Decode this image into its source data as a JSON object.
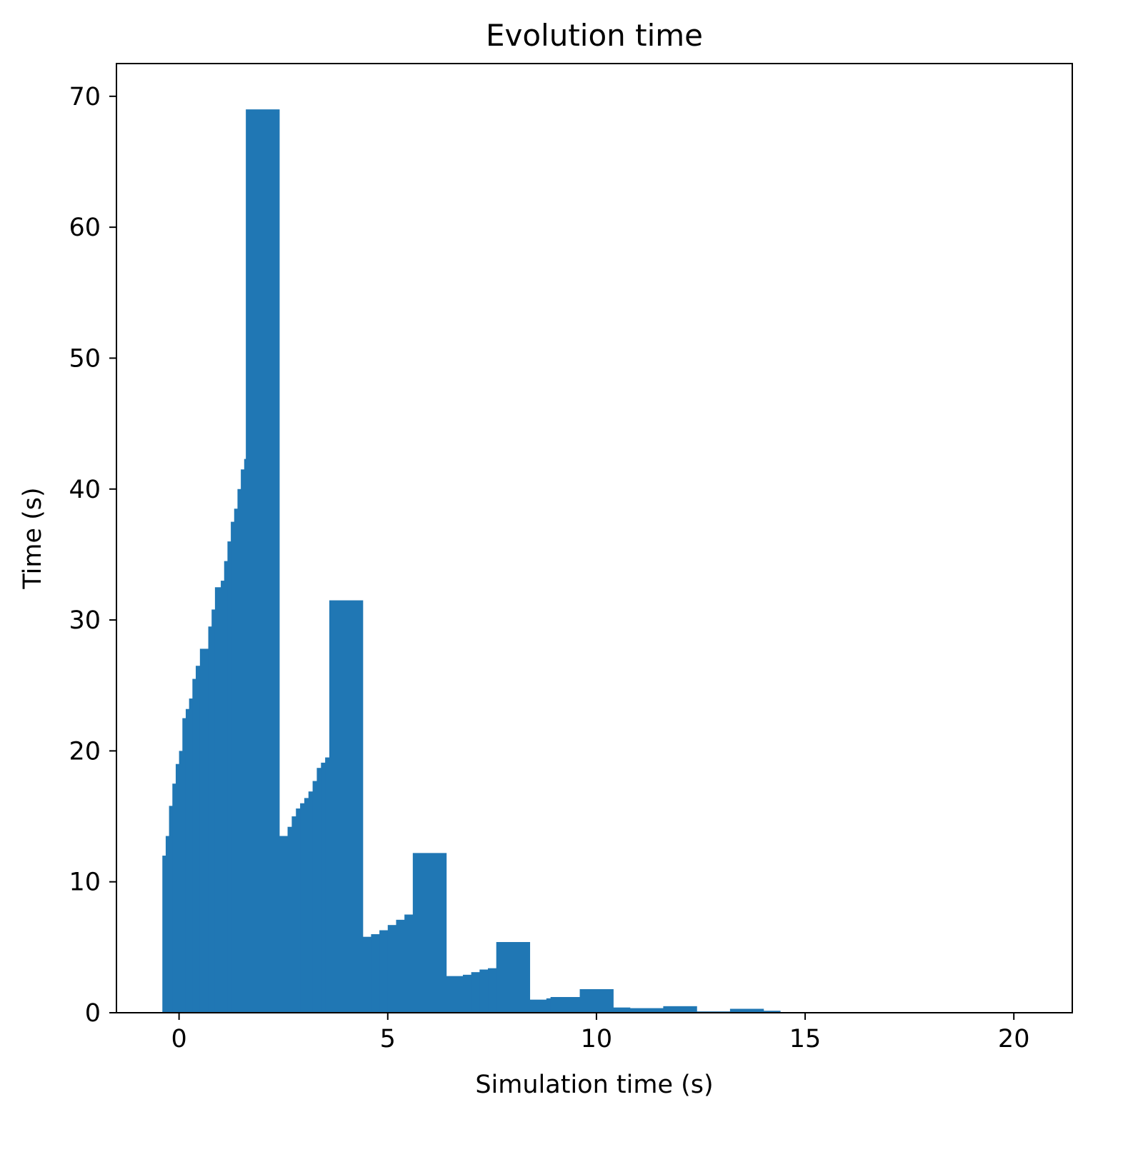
{
  "chart_data": {
    "type": "bar",
    "title": "Evolution time",
    "xlabel": "Simulation time (s)",
    "ylabel": "Time (s)",
    "xlim": [
      -1.5,
      21.4
    ],
    "ylim": [
      0,
      72.5
    ],
    "xticks": [
      0,
      5,
      10,
      15,
      20
    ],
    "xtick_labels": [
      "0",
      "5",
      "10",
      "15",
      "20"
    ],
    "yticks": [
      0,
      10,
      20,
      30,
      40,
      50,
      60,
      70
    ],
    "ytick_labels": [
      "0",
      "10",
      "20",
      "30",
      "40",
      "50",
      "60",
      "70"
    ],
    "grid": false,
    "color": "#2077b4",
    "steps": [
      [
        -0.4,
        12.0
      ],
      [
        -0.32,
        13.5
      ],
      [
        -0.24,
        15.8
      ],
      [
        -0.16,
        17.5
      ],
      [
        -0.08,
        19.0
      ],
      [
        0.0,
        20.0
      ],
      [
        0.08,
        22.5
      ],
      [
        0.16,
        23.2
      ],
      [
        0.24,
        24.0
      ],
      [
        0.32,
        25.5
      ],
      [
        0.4,
        26.5
      ],
      [
        0.5,
        27.8
      ],
      [
        0.7,
        29.5
      ],
      [
        0.78,
        30.8
      ],
      [
        0.86,
        32.5
      ],
      [
        1.0,
        33.0
      ],
      [
        1.08,
        34.5
      ],
      [
        1.16,
        36.0
      ],
      [
        1.24,
        37.5
      ],
      [
        1.32,
        38.5
      ],
      [
        1.4,
        40.0
      ],
      [
        1.48,
        41.5
      ],
      [
        1.56,
        42.3
      ],
      [
        1.6,
        69.0
      ],
      [
        2.4,
        13.5
      ],
      [
        2.6,
        14.2
      ],
      [
        2.7,
        15.0
      ],
      [
        2.8,
        15.6
      ],
      [
        2.9,
        16.0
      ],
      [
        3.0,
        16.4
      ],
      [
        3.1,
        16.9
      ],
      [
        3.2,
        17.7
      ],
      [
        3.3,
        18.7
      ],
      [
        3.4,
        19.1
      ],
      [
        3.5,
        19.5
      ],
      [
        3.6,
        19.9
      ],
      [
        3.6,
        31.5
      ],
      [
        4.4,
        5.8
      ],
      [
        4.6,
        6.0
      ],
      [
        4.8,
        6.3
      ],
      [
        5.0,
        6.7
      ],
      [
        5.2,
        7.1
      ],
      [
        5.4,
        7.5
      ],
      [
        5.6,
        7.9
      ],
      [
        5.6,
        12.2
      ],
      [
        6.4,
        2.8
      ],
      [
        6.8,
        2.9
      ],
      [
        7.0,
        3.1
      ],
      [
        7.2,
        3.3
      ],
      [
        7.4,
        3.4
      ],
      [
        7.6,
        5.4
      ],
      [
        8.4,
        1.0
      ],
      [
        8.8,
        1.1
      ],
      [
        8.9,
        1.2
      ],
      [
        9.6,
        1.8
      ],
      [
        10.4,
        0.4
      ],
      [
        10.8,
        0.35
      ],
      [
        11.6,
        0.5
      ],
      [
        12.4,
        0.1
      ],
      [
        13.2,
        0.3
      ],
      [
        14.0,
        0.15
      ],
      [
        14.4,
        0.0
      ]
    ]
  }
}
